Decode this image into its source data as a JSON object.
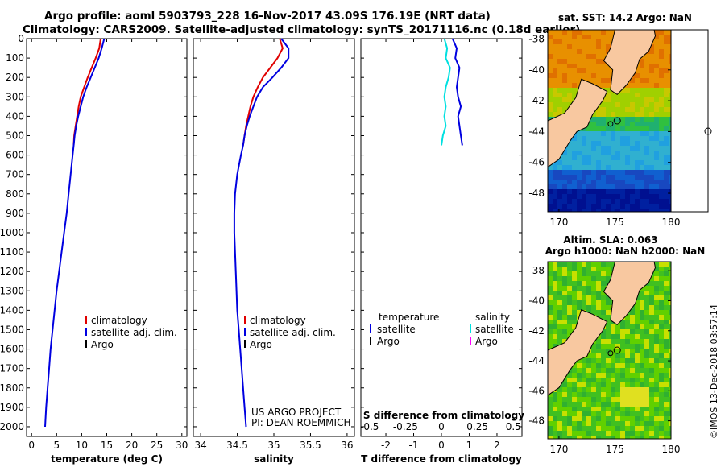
{
  "header": {
    "line1": "Argo profile: aoml 5903793_228 16-Nov-2017 43.09S 176.19E (NRT data)",
    "line2": "Climatology: CARS2009. Satellite-adjusted climatology: synTS_20171116.nc (0.18d earlier)"
  },
  "colors": {
    "climatology": "#e00000",
    "satellite_adj": "#0000e0",
    "argo": "#000000",
    "satellite_salinity": "#00e0e0",
    "argo_salinity": "#ff00ff",
    "land": "#f8c8a0"
  },
  "chart_data": [
    {
      "id": "temperature",
      "type": "line",
      "xlabel": "temperature (deg C)",
      "xlim": [
        -1,
        31
      ],
      "xticks": [
        0,
        5,
        10,
        15,
        20,
        25,
        30
      ],
      "ylim": [
        2050,
        0
      ],
      "yticks": [
        0,
        100,
        200,
        300,
        400,
        500,
        600,
        700,
        800,
        900,
        1000,
        1100,
        1200,
        1300,
        1400,
        1500,
        1600,
        1700,
        1800,
        1900,
        2000
      ],
      "legend": [
        "climatology",
        "satellite-adj. clim.",
        "Argo"
      ],
      "series": [
        {
          "name": "climatology",
          "color": "#e00000",
          "points": [
            [
              13.8,
              0
            ],
            [
              13.5,
              50
            ],
            [
              12.8,
              100
            ],
            [
              12.0,
              150
            ],
            [
              11.2,
              200
            ],
            [
              10.5,
              250
            ],
            [
              9.8,
              300
            ],
            [
              9.4,
              350
            ],
            [
              9.1,
              400
            ],
            [
              8.8,
              450
            ],
            [
              8.5,
              500
            ],
            [
              8.4,
              550
            ]
          ]
        },
        {
          "name": "satellite-adj. clim.",
          "color": "#0000e0",
          "points": [
            [
              14.5,
              0
            ],
            [
              14.0,
              50
            ],
            [
              13.4,
              100
            ],
            [
              12.6,
              150
            ],
            [
              11.8,
              200
            ],
            [
              11.0,
              250
            ],
            [
              10.3,
              300
            ],
            [
              9.8,
              350
            ],
            [
              9.3,
              400
            ],
            [
              8.9,
              450
            ],
            [
              8.6,
              500
            ],
            [
              8.4,
              550
            ],
            [
              8.2,
              600
            ],
            [
              7.8,
              700
            ],
            [
              7.4,
              800
            ],
            [
              7.0,
              900
            ],
            [
              6.5,
              1000
            ],
            [
              6.0,
              1100
            ],
            [
              5.5,
              1200
            ],
            [
              5.0,
              1300
            ],
            [
              4.6,
              1400
            ],
            [
              4.2,
              1500
            ],
            [
              3.8,
              1600
            ],
            [
              3.5,
              1700
            ],
            [
              3.2,
              1800
            ],
            [
              2.9,
              1900
            ],
            [
              2.7,
              2000
            ]
          ]
        }
      ]
    },
    {
      "id": "salinity",
      "type": "line",
      "xlabel": "salinity",
      "xlim": [
        33.9,
        36.1
      ],
      "xticks": [
        34,
        34.5,
        35,
        35.5,
        36
      ],
      "ylim": [
        2050,
        0
      ],
      "yticks": [
        0,
        100,
        200,
        300,
        400,
        500,
        600,
        700,
        800,
        900,
        1000,
        1100,
        1200,
        1300,
        1400,
        1500,
        1600,
        1700,
        1800,
        1900,
        2000
      ],
      "legend": [
        "climatology",
        "satellite-adj. clim.",
        "Argo"
      ],
      "annotations": [
        "US ARGO PROJECT",
        "PI: DEAN ROEMMICH"
      ],
      "series": [
        {
          "name": "climatology",
          "color": "#e00000",
          "points": [
            [
              35.08,
              0
            ],
            [
              35.12,
              50
            ],
            [
              35.05,
              100
            ],
            [
              34.95,
              150
            ],
            [
              34.85,
              200
            ],
            [
              34.78,
              250
            ],
            [
              34.72,
              300
            ],
            [
              34.68,
              350
            ],
            [
              34.65,
              400
            ],
            [
              34.62,
              450
            ],
            [
              34.6,
              500
            ],
            [
              34.58,
              550
            ]
          ]
        },
        {
          "name": "satellite-adj. clim.",
          "color": "#0000e0",
          "points": [
            [
              35.1,
              0
            ],
            [
              35.2,
              50
            ],
            [
              35.2,
              100
            ],
            [
              35.1,
              150
            ],
            [
              34.98,
              200
            ],
            [
              34.85,
              250
            ],
            [
              34.77,
              300
            ],
            [
              34.72,
              350
            ],
            [
              34.67,
              400
            ],
            [
              34.63,
              450
            ],
            [
              34.6,
              500
            ],
            [
              34.58,
              550
            ],
            [
              34.55,
              600
            ],
            [
              34.5,
              700
            ],
            [
              34.47,
              800
            ],
            [
              34.46,
              900
            ],
            [
              34.46,
              1000
            ],
            [
              34.47,
              1100
            ],
            [
              34.48,
              1200
            ],
            [
              34.49,
              1300
            ],
            [
              34.5,
              1400
            ],
            [
              34.52,
              1500
            ],
            [
              34.54,
              1600
            ],
            [
              34.56,
              1700
            ],
            [
              34.58,
              1800
            ],
            [
              34.6,
              1900
            ],
            [
              34.62,
              2000
            ]
          ]
        }
      ]
    },
    {
      "id": "difference",
      "type": "line",
      "xlabel": "T difference from climatology",
      "xlabel_top": "S difference from climatology",
      "xlim": [
        -2.9,
        2.9
      ],
      "xticks": [
        -2,
        -1,
        0,
        1,
        2
      ],
      "xticks_top": [
        -0.5,
        -0.25,
        0,
        0.25,
        0.5
      ],
      "xticks_top_labels": [
        "-0.5",
        "-0.25",
        "0",
        "0.25",
        "0.5"
      ],
      "ylim": [
        2050,
        0
      ],
      "legend_left_title": "temperature",
      "legend_right_title": "salinity",
      "legend_left": [
        "satellite",
        "Argo"
      ],
      "legend_right": [
        "satellite",
        "Argo"
      ],
      "series": [
        {
          "name": "satellite",
          "color": "#0000e0",
          "points": [
            [
              0.4,
              0
            ],
            [
              0.55,
              50
            ],
            [
              0.5,
              100
            ],
            [
              0.65,
              150
            ],
            [
              0.6,
              200
            ],
            [
              0.55,
              250
            ],
            [
              0.6,
              300
            ],
            [
              0.7,
              350
            ],
            [
              0.6,
              400
            ],
            [
              0.65,
              450
            ],
            [
              0.7,
              500
            ],
            [
              0.75,
              550
            ]
          ]
        },
        {
          "name": "satellite",
          "color": "#00e0e0",
          "scale": "salinity",
          "points": [
            [
              0.02,
              0
            ],
            [
              0.04,
              50
            ],
            [
              0.03,
              100
            ],
            [
              0.06,
              150
            ],
            [
              0.05,
              200
            ],
            [
              0.03,
              250
            ],
            [
              0.02,
              300
            ],
            [
              0.03,
              350
            ],
            [
              0.02,
              400
            ],
            [
              0.03,
              450
            ],
            [
              0.01,
              500
            ],
            [
              0.0,
              550
            ]
          ]
        }
      ]
    }
  ],
  "maps": {
    "sst": {
      "title": "sat. SST: 14.2 Argo: NaN",
      "lon_ticks": [
        "170",
        "175",
        "180"
      ],
      "lat_ticks": [
        "-38",
        "-40",
        "-42",
        "-44",
        "-46",
        "-48"
      ]
    },
    "sla": {
      "title1": "Altim. SLA: 0.063",
      "title2": "Argo h1000: NaN h2000: NaN",
      "lon_ticks": [
        "170",
        "175",
        "180"
      ],
      "lat_ticks": [
        "-38",
        "-40",
        "-42",
        "-44",
        "-46",
        "-48"
      ]
    }
  },
  "credit": "©IMOS 13-Dec-2018 03:57:14"
}
